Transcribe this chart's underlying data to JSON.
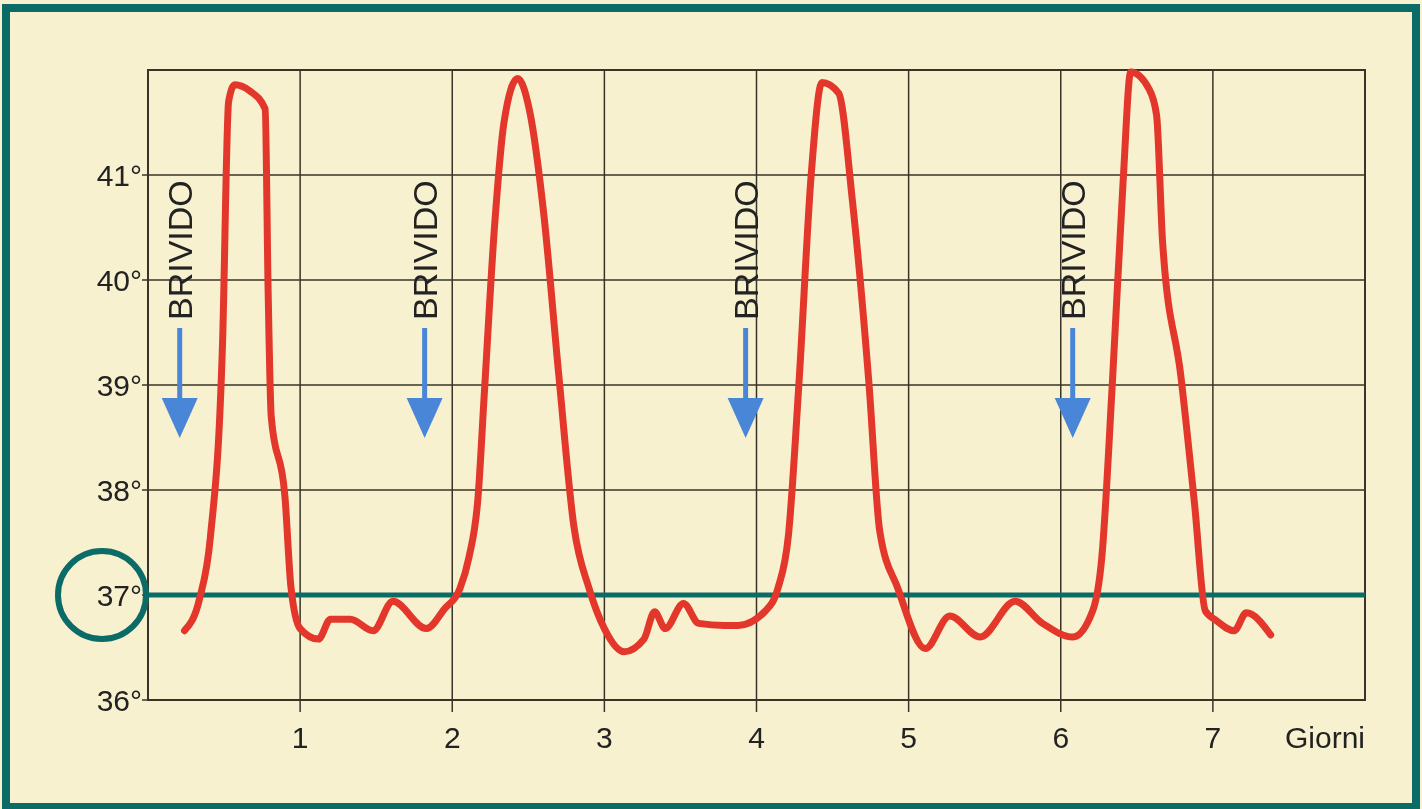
{
  "chart_data": {
    "type": "line",
    "xlabel": "Giorni",
    "xlim": [
      0,
      8
    ],
    "ylim": [
      36,
      42
    ],
    "xticks": [
      1,
      2,
      3,
      4,
      5,
      6,
      7
    ],
    "yticks": [
      {
        "value": 36,
        "label": "36°"
      },
      {
        "value": 37,
        "label": "37°"
      },
      {
        "value": 38,
        "label": "38°"
      },
      {
        "value": 39,
        "label": "39°"
      },
      {
        "value": 40,
        "label": "40°"
      },
      {
        "value": 41,
        "label": "41°"
      }
    ],
    "grid": true,
    "series": [
      {
        "color": "#e2372a",
        "x": [
          0.24,
          0.34,
          0.41,
          0.49,
          0.53,
          0.57,
          0.67,
          0.77,
          0.79,
          0.81,
          0.9,
          0.94,
          1.0,
          1.12,
          1.2,
          1.33,
          1.48,
          1.61,
          1.83,
          1.95,
          2.05,
          2.11,
          2.17,
          2.21,
          2.28,
          2.34,
          2.43,
          2.51,
          2.6,
          2.7,
          2.8,
          2.9,
          3.0,
          3.13,
          3.26,
          3.33,
          3.4,
          3.52,
          3.62,
          3.79,
          3.88,
          4.06,
          4.14,
          4.21,
          4.28,
          4.36,
          4.43,
          4.54,
          4.63,
          4.74,
          4.81,
          4.93,
          5.11,
          5.27,
          5.47,
          5.7,
          5.88,
          6.08,
          6.21,
          6.27,
          6.34,
          6.41,
          6.46,
          6.58,
          6.63,
          6.67,
          6.79,
          6.88,
          6.95,
          7.02,
          7.14,
          7.22,
          7.38
        ],
        "values": [
          36.66,
          36.97,
          37.55,
          39.4,
          41.7,
          41.86,
          41.8,
          41.63,
          39.87,
          38.7,
          37.94,
          37.07,
          36.68,
          36.58,
          36.77,
          36.77,
          36.66,
          36.94,
          36.68,
          36.87,
          37.06,
          37.36,
          37.94,
          38.9,
          40.55,
          41.5,
          41.92,
          41.6,
          40.65,
          39.1,
          37.65,
          37.06,
          36.68,
          36.46,
          36.58,
          36.84,
          36.68,
          36.92,
          36.73,
          36.71,
          36.71,
          36.85,
          37.06,
          37.57,
          39.04,
          41.01,
          41.88,
          41.78,
          40.76,
          39.0,
          37.61,
          37.06,
          36.49,
          36.8,
          36.6,
          36.94,
          36.73,
          36.6,
          36.85,
          37.36,
          39.04,
          40.94,
          41.98,
          41.82,
          41.57,
          40.35,
          39.08,
          37.86,
          36.85,
          36.76,
          36.66,
          36.83,
          36.62
        ]
      }
    ],
    "ref_lines": [
      {
        "axis": "y",
        "value": 37,
        "color": "#0b6b66"
      }
    ],
    "annotations": [
      "BRIVIDO",
      "BRIVIDO",
      "BRIVIDO",
      "BRIVIDO"
    ]
  }
}
